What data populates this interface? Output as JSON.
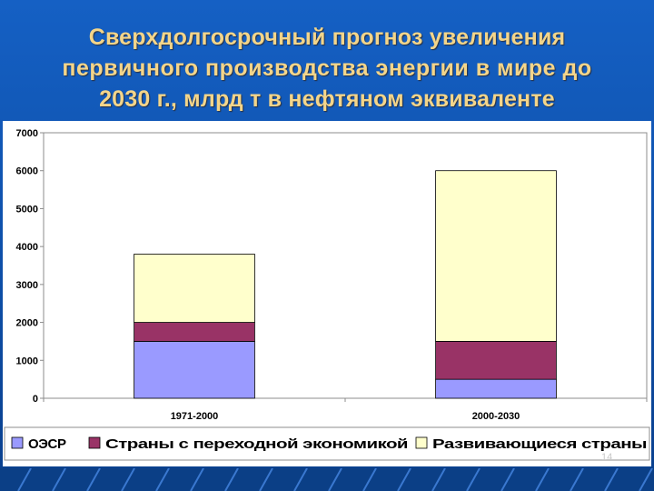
{
  "slide": {
    "title_lines": [
      "Сверхдолгосрочный прогноз увеличения",
      "первичного производства энергии в мире до",
      "2030 г.,  млрд т в нефтяном эквиваленте"
    ],
    "page_number": "14",
    "colors": {
      "background": "#0f57b8",
      "title": "#f3d58a"
    }
  },
  "chart_data": {
    "type": "bar",
    "stacked": true,
    "categories": [
      "1971-2000",
      "2000-2030"
    ],
    "series": [
      {
        "name": "ОЭСР",
        "values": [
          1500,
          500
        ],
        "color": "#9a9aff"
      },
      {
        "name": "Страны с переходной экономикой",
        "values": [
          500,
          1000
        ],
        "color": "#993366"
      },
      {
        "name": "Развивающиеся страны",
        "values": [
          1800,
          4500
        ],
        "color": "#ffffcc"
      }
    ],
    "yticks": [
      "0",
      "1000",
      "2000",
      "3000",
      "4000",
      "5000",
      "6000",
      "7000"
    ],
    "ylim": [
      0,
      7000
    ],
    "title": "",
    "xlabel": "",
    "ylabel": "",
    "grid": false,
    "legend": "bottom"
  }
}
